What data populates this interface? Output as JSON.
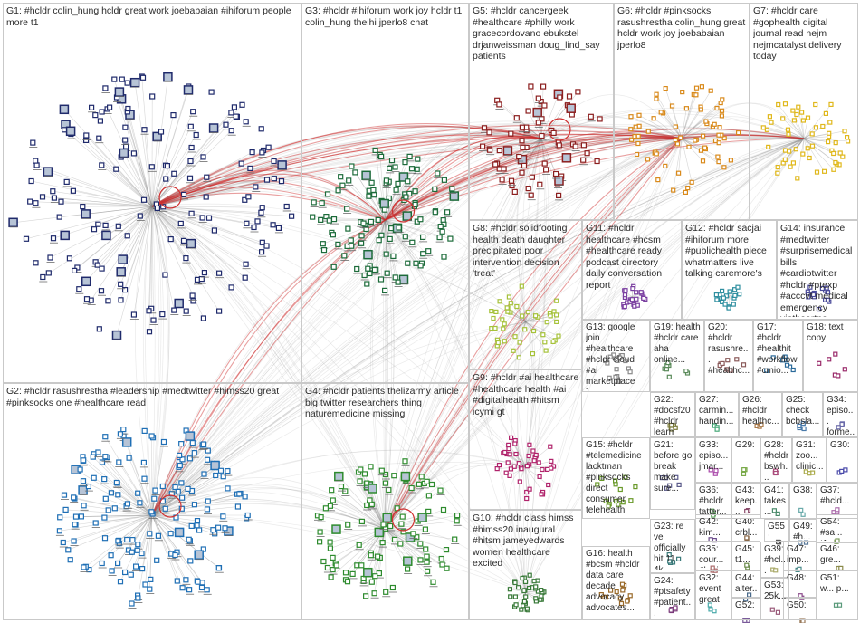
{
  "groups": [
    {
      "id": "G1",
      "text": "#hcldr colin_hung hcldr great work joebabaian #ihiforum people more t1",
      "color": "#1f2a6b",
      "nodes": 180
    },
    {
      "id": "G2",
      "text": "#hcldr rasushrestha #leadership #medtwitter #himss20 great #pinksocks one #healthcare read",
      "color": "#1f6fb5",
      "nodes": 170
    },
    {
      "id": "G3",
      "text": "#hcldr #ihiforum work joy hcldr t1 colin_hung theihi jperlo8 chat",
      "color": "#1c6b3a",
      "nodes": 120
    },
    {
      "id": "G4",
      "text": "#hcldr patients thelizarmy article big twitter researchers thing naturemedicine missing",
      "color": "#2e8b2e",
      "nodes": 110
    },
    {
      "id": "G5",
      "text": "#hcldr cancergeek #healthcare #philly work gracecordovano ebukstel drjanweissman doug_lind_say patients",
      "color": "#8b1e1e",
      "nodes": 70
    },
    {
      "id": "G6",
      "text": "#hcldr #pinksocks rasushrestha colin_hung great hcldr work joy joebabaian jperlo8",
      "color": "#d98a1c",
      "nodes": 70
    },
    {
      "id": "G7",
      "text": "#hcldr care #gophealth digital journal read nejm nejmcatalyst delivery today",
      "color": "#e0b81c",
      "nodes": 55
    },
    {
      "id": "G8",
      "text": "#hcldr solidfooting health death daughter precipitated poor intervention decision 'treat'",
      "color": "#a6c23a",
      "nodes": 45
    },
    {
      "id": "G9",
      "text": "#hcldr #ai healthcare #healthcare health #ai #digitalhealth #hitsm icymi gt",
      "color": "#b0236b",
      "nodes": 45
    },
    {
      "id": "G10",
      "text": "#hcldr class himss #himss20 inaugural #hitsm jameyedwards women healthcare excited",
      "color": "#3a7a3a",
      "nodes": 40
    },
    {
      "id": "G11",
      "text": "#hcldr healthcare #hcsm #healthcare ready podcast directory daily conversation report",
      "color": "#7a3fa0",
      "nodes": 25
    },
    {
      "id": "G12",
      "text": "#hcldr sacjai #ihiforum more #publichealth piece whatmatters live talking caremore's",
      "color": "#2f8fa0",
      "nodes": 20
    },
    {
      "id": "G13",
      "text": "google join #healthcare #hcldr cloud #ai marketplace hear klasresearch december",
      "color": "#8a8a8a",
      "nodes": 18
    },
    {
      "id": "G14",
      "text": "insurance #medtwitter #surprisemedicalbills #cardiotwitter #hcldr #ptexp #acccvt medical emergency vietheartpa",
      "color": "#4a4a9a",
      "nodes": 16
    },
    {
      "id": "G15",
      "text": "#hcldr #telemedicine lacktman #pinksocks direct consumer telehealth industry need more",
      "color": "#6a9a2a",
      "nodes": 15
    },
    {
      "id": "G16",
      "text": "health #bcsm #hcldr data care decade advocacy advocates...",
      "color": "#9a6a2a",
      "nodes": 14
    },
    {
      "id": "G17",
      "text": "#hcldr #healthit #workflow #cmio...",
      "color": "#2a6a9a",
      "nodes": 8
    },
    {
      "id": "G18",
      "text": "text copy",
      "color": "#9a2a6a",
      "nodes": 6
    },
    {
      "id": "G19",
      "text": "health #hcldr care aha online...",
      "color": "#5a8a5a",
      "nodes": 8
    },
    {
      "id": "G20",
      "text": "#hcldr rasushre... #healthc...",
      "color": "#8a5a5a",
      "nodes": 8
    },
    {
      "id": "G21",
      "text": "before go break make sure...",
      "color": "#5a5a8a",
      "nodes": 6
    },
    {
      "id": "G22",
      "text": "#docsf20 #hcldr learn more...",
      "color": "#7a7a3a",
      "nodes": 6
    },
    {
      "id": "G23",
      "text": "re ve officially hit 11 4k...",
      "color": "#3a7a7a",
      "nodes": 5
    },
    {
      "id": "G24",
      "text": "#ptsafety #patient...",
      "color": "#7a3a7a",
      "nodes": 5
    },
    {
      "id": "G25",
      "text": "check bcbsla...",
      "color": "#4a7aaa",
      "nodes": 4
    },
    {
      "id": "G26",
      "text": "#hcldr healthc...",
      "color": "#aa7a4a",
      "nodes": 4
    },
    {
      "id": "G27",
      "text": "carmin... handin...",
      "color": "#4aaa7a",
      "nodes": 4
    },
    {
      "id": "G28",
      "text": "#hcldr bswh...",
      "color": "#aa4a7a",
      "nodes": 4
    },
    {
      "id": "G29",
      "text": "",
      "color": "#7aaa4a",
      "nodes": 3
    },
    {
      "id": "G30",
      "text": "",
      "color": "#4a4aaa",
      "nodes": 3
    },
    {
      "id": "G31",
      "text": "zoo... clinic...",
      "color": "#aaaa4a",
      "nodes": 3
    },
    {
      "id": "G32",
      "text": "event great",
      "color": "#4aaaaa",
      "nodes": 3
    },
    {
      "id": "G33",
      "text": "episo... jmar...",
      "color": "#aa4aaa",
      "nodes": 3
    },
    {
      "id": "G34",
      "text": "episo... forme...",
      "color": "#6a6aaa",
      "nodes": 3
    },
    {
      "id": "G35",
      "text": "cour... #hmi...",
      "color": "#aa6a6a",
      "nodes": 3
    },
    {
      "id": "G36",
      "text": "#hcldr tatter...",
      "color": "#6aaa6a",
      "nodes": 3
    },
    {
      "id": "G37",
      "text": "#hcld...",
      "color": "#aa6aaa",
      "nodes": 3
    },
    {
      "id": "G38",
      "text": "",
      "color": "#6aaaaa",
      "nodes": 2
    },
    {
      "id": "G39",
      "text": "#hcl... #he...",
      "color": "#aaaa6a",
      "nodes": 2
    },
    {
      "id": "G40",
      "text": "crbl...",
      "color": "#8a6a4a",
      "nodes": 2
    },
    {
      "id": "G41",
      "text": "takes...",
      "color": "#4a8a6a",
      "nodes": 2
    },
    {
      "id": "G42",
      "text": "kim...",
      "color": "#6a4a8a",
      "nodes": 2
    },
    {
      "id": "G43",
      "text": "keep...",
      "color": "#8a4a6a",
      "nodes": 2
    },
    {
      "id": "G44",
      "text": "alter...",
      "color": "#4a6a8a",
      "nodes": 2
    },
    {
      "id": "G45",
      "text": "t1...",
      "color": "#6a8a4a",
      "nodes": 2
    },
    {
      "id": "G46",
      "text": "gre...",
      "color": "#8a8a4a",
      "nodes": 2
    },
    {
      "id": "G47",
      "text": "imp...",
      "color": "#4a8a8a",
      "nodes": 2
    },
    {
      "id": "G48",
      "text": "",
      "color": "#8a4a8a",
      "nodes": 2
    },
    {
      "id": "G49",
      "text": "#h...",
      "color": "#5a7a9a",
      "nodes": 2
    },
    {
      "id": "G50",
      "text": "",
      "color": "#9a7a5a",
      "nodes": 2
    },
    {
      "id": "G51",
      "text": "w... p...",
      "color": "#5a9a7a",
      "nodes": 2
    },
    {
      "id": "G52",
      "text": "",
      "color": "#7a5a9a",
      "nodes": 2
    },
    {
      "id": "G53",
      "text": "25k...",
      "color": "#9a5a7a",
      "nodes": 2
    },
    {
      "id": "G54",
      "text": "#sa... t1...",
      "color": "#7a9a5a",
      "nodes": 2
    },
    {
      "id": "G55",
      "text": "",
      "color": "#5a5a5a",
      "nodes": 2
    }
  ]
}
